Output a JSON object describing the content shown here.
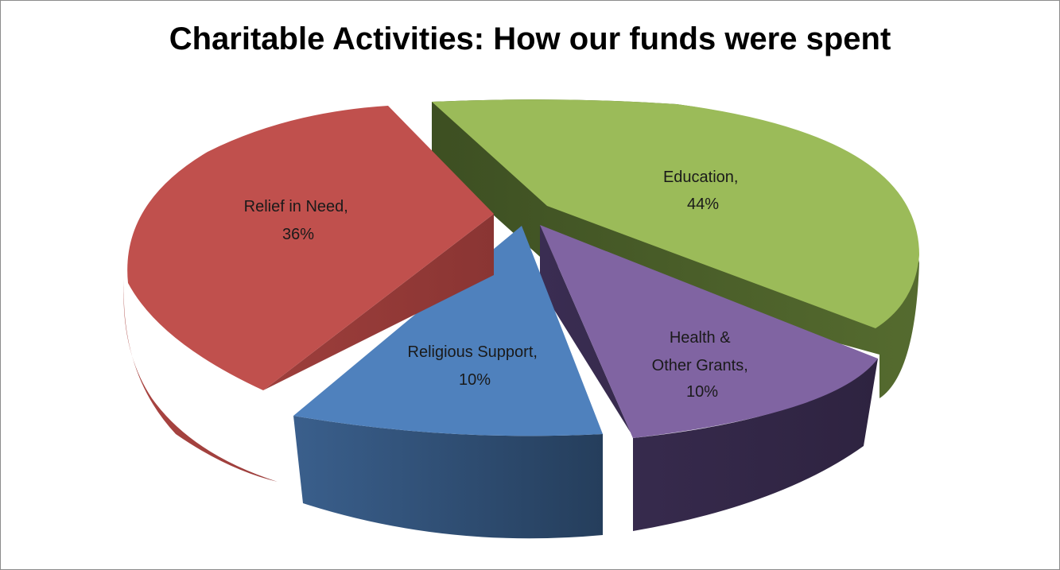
{
  "chart_data": {
    "type": "pie",
    "title": "Charitable Activities: How our funds were spent",
    "slices": [
      {
        "name": "Education",
        "value": 44,
        "label_line1": "Education,",
        "label_line2": "44%",
        "color": "#9bbb59"
      },
      {
        "name": "Health & Other Grants",
        "value": 10,
        "label_line1": "Health &",
        "label_line2": "Other Grants,",
        "label_line3": "10%",
        "color": "#8064a2"
      },
      {
        "name": "Religious Support",
        "value": 10,
        "label_line1": "Religious Support,",
        "label_line2": "10%",
        "color": "#4f81bd"
      },
      {
        "name": "Relief in Need",
        "value": 36,
        "label_line1": "Relief in Need,",
        "label_line2": "36%",
        "color": "#c0504d"
      }
    ],
    "style": "3d-exploded",
    "legend": "none"
  }
}
